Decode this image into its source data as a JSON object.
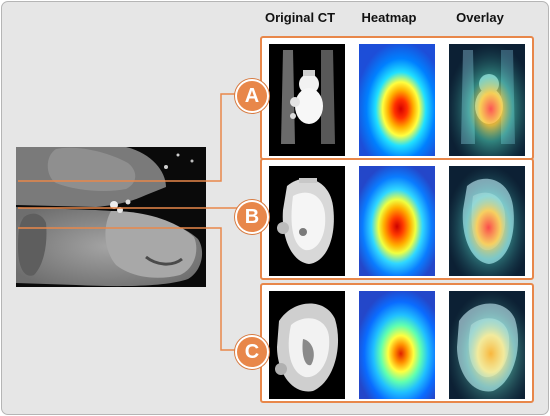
{
  "headers": {
    "original": "Original CT",
    "heatmap": "Heatmap",
    "overlay": "Overlay"
  },
  "rows": [
    {
      "label": "A"
    },
    {
      "label": "B"
    },
    {
      "label": "C"
    }
  ],
  "colors": {
    "accent": "#e8874a",
    "background": "#e6e6e6"
  }
}
